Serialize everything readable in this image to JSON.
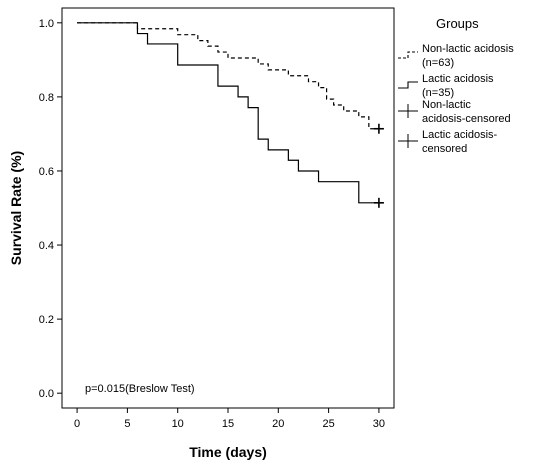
{
  "chart_data": {
    "type": "line",
    "title": "",
    "xlabel": "Time (days)",
    "ylabel": "Survival Rate (%)",
    "xlim": [
      -1.5,
      31.5
    ],
    "ylim": [
      -0.04,
      1.04
    ],
    "x_ticks": [
      0,
      5,
      10,
      15,
      20,
      25,
      30
    ],
    "x_tick_labels": [
      "0",
      "5",
      "10",
      "15",
      "20",
      "25",
      "30"
    ],
    "y_ticks": [
      0.0,
      0.2,
      0.4,
      0.6,
      0.8,
      1.0
    ],
    "y_tick_labels": [
      "0.0",
      "0.2",
      "0.4",
      "0.6",
      "0.8",
      "1.0"
    ],
    "grid": false,
    "legend_title": "Groups",
    "legend_placement": "right",
    "annotation": "p=0.015(Breslow Test)",
    "series": [
      {
        "label_lines": [
          "Non-lactic acidosis",
          "(n=63)"
        ],
        "style": "dashed",
        "color": "#000000",
        "steps": [
          [
            0,
            1.0
          ],
          [
            6,
            0.984
          ],
          [
            10,
            0.968
          ],
          [
            12,
            0.952
          ],
          [
            13,
            0.937
          ],
          [
            14,
            0.921
          ],
          [
            15,
            0.905
          ],
          [
            18,
            0.889
          ],
          [
            19,
            0.873
          ],
          [
            21,
            0.857
          ],
          [
            23,
            0.841
          ],
          [
            24,
            0.825
          ],
          [
            24.8,
            0.794
          ],
          [
            25.5,
            0.778
          ],
          [
            26.5,
            0.762
          ],
          [
            28,
            0.746
          ],
          [
            29,
            0.714
          ],
          [
            30,
            0.714
          ]
        ],
        "censored": [
          [
            30,
            0.714
          ]
        ]
      },
      {
        "label_lines": [
          "Lactic acidosis",
          "(n=35)"
        ],
        "style": "solid",
        "color": "#000000",
        "steps": [
          [
            0,
            1.0
          ],
          [
            6,
            0.971
          ],
          [
            7,
            0.943
          ],
          [
            10,
            0.886
          ],
          [
            14,
            0.829
          ],
          [
            16,
            0.8
          ],
          [
            17,
            0.771
          ],
          [
            18,
            0.686
          ],
          [
            19,
            0.657
          ],
          [
            21,
            0.629
          ],
          [
            22,
            0.6
          ],
          [
            24,
            0.571
          ],
          [
            28,
            0.514
          ],
          [
            30,
            0.514
          ]
        ],
        "censored": [
          [
            30,
            0.514
          ]
        ]
      }
    ],
    "legend_items": [
      {
        "label_lines": [
          "Non-lactic acidosis",
          "(n=63)"
        ],
        "swatch": "dashed-step"
      },
      {
        "label_lines": [
          "Lactic acidosis",
          "(n=35)"
        ],
        "swatch": "solid-step"
      },
      {
        "label_lines": [
          "Non-lactic",
          "acidosis-censored"
        ],
        "swatch": "censor-mark"
      },
      {
        "label_lines": [
          "Lactic acidosis-",
          "censored"
        ],
        "swatch": "censor-mark"
      }
    ]
  }
}
